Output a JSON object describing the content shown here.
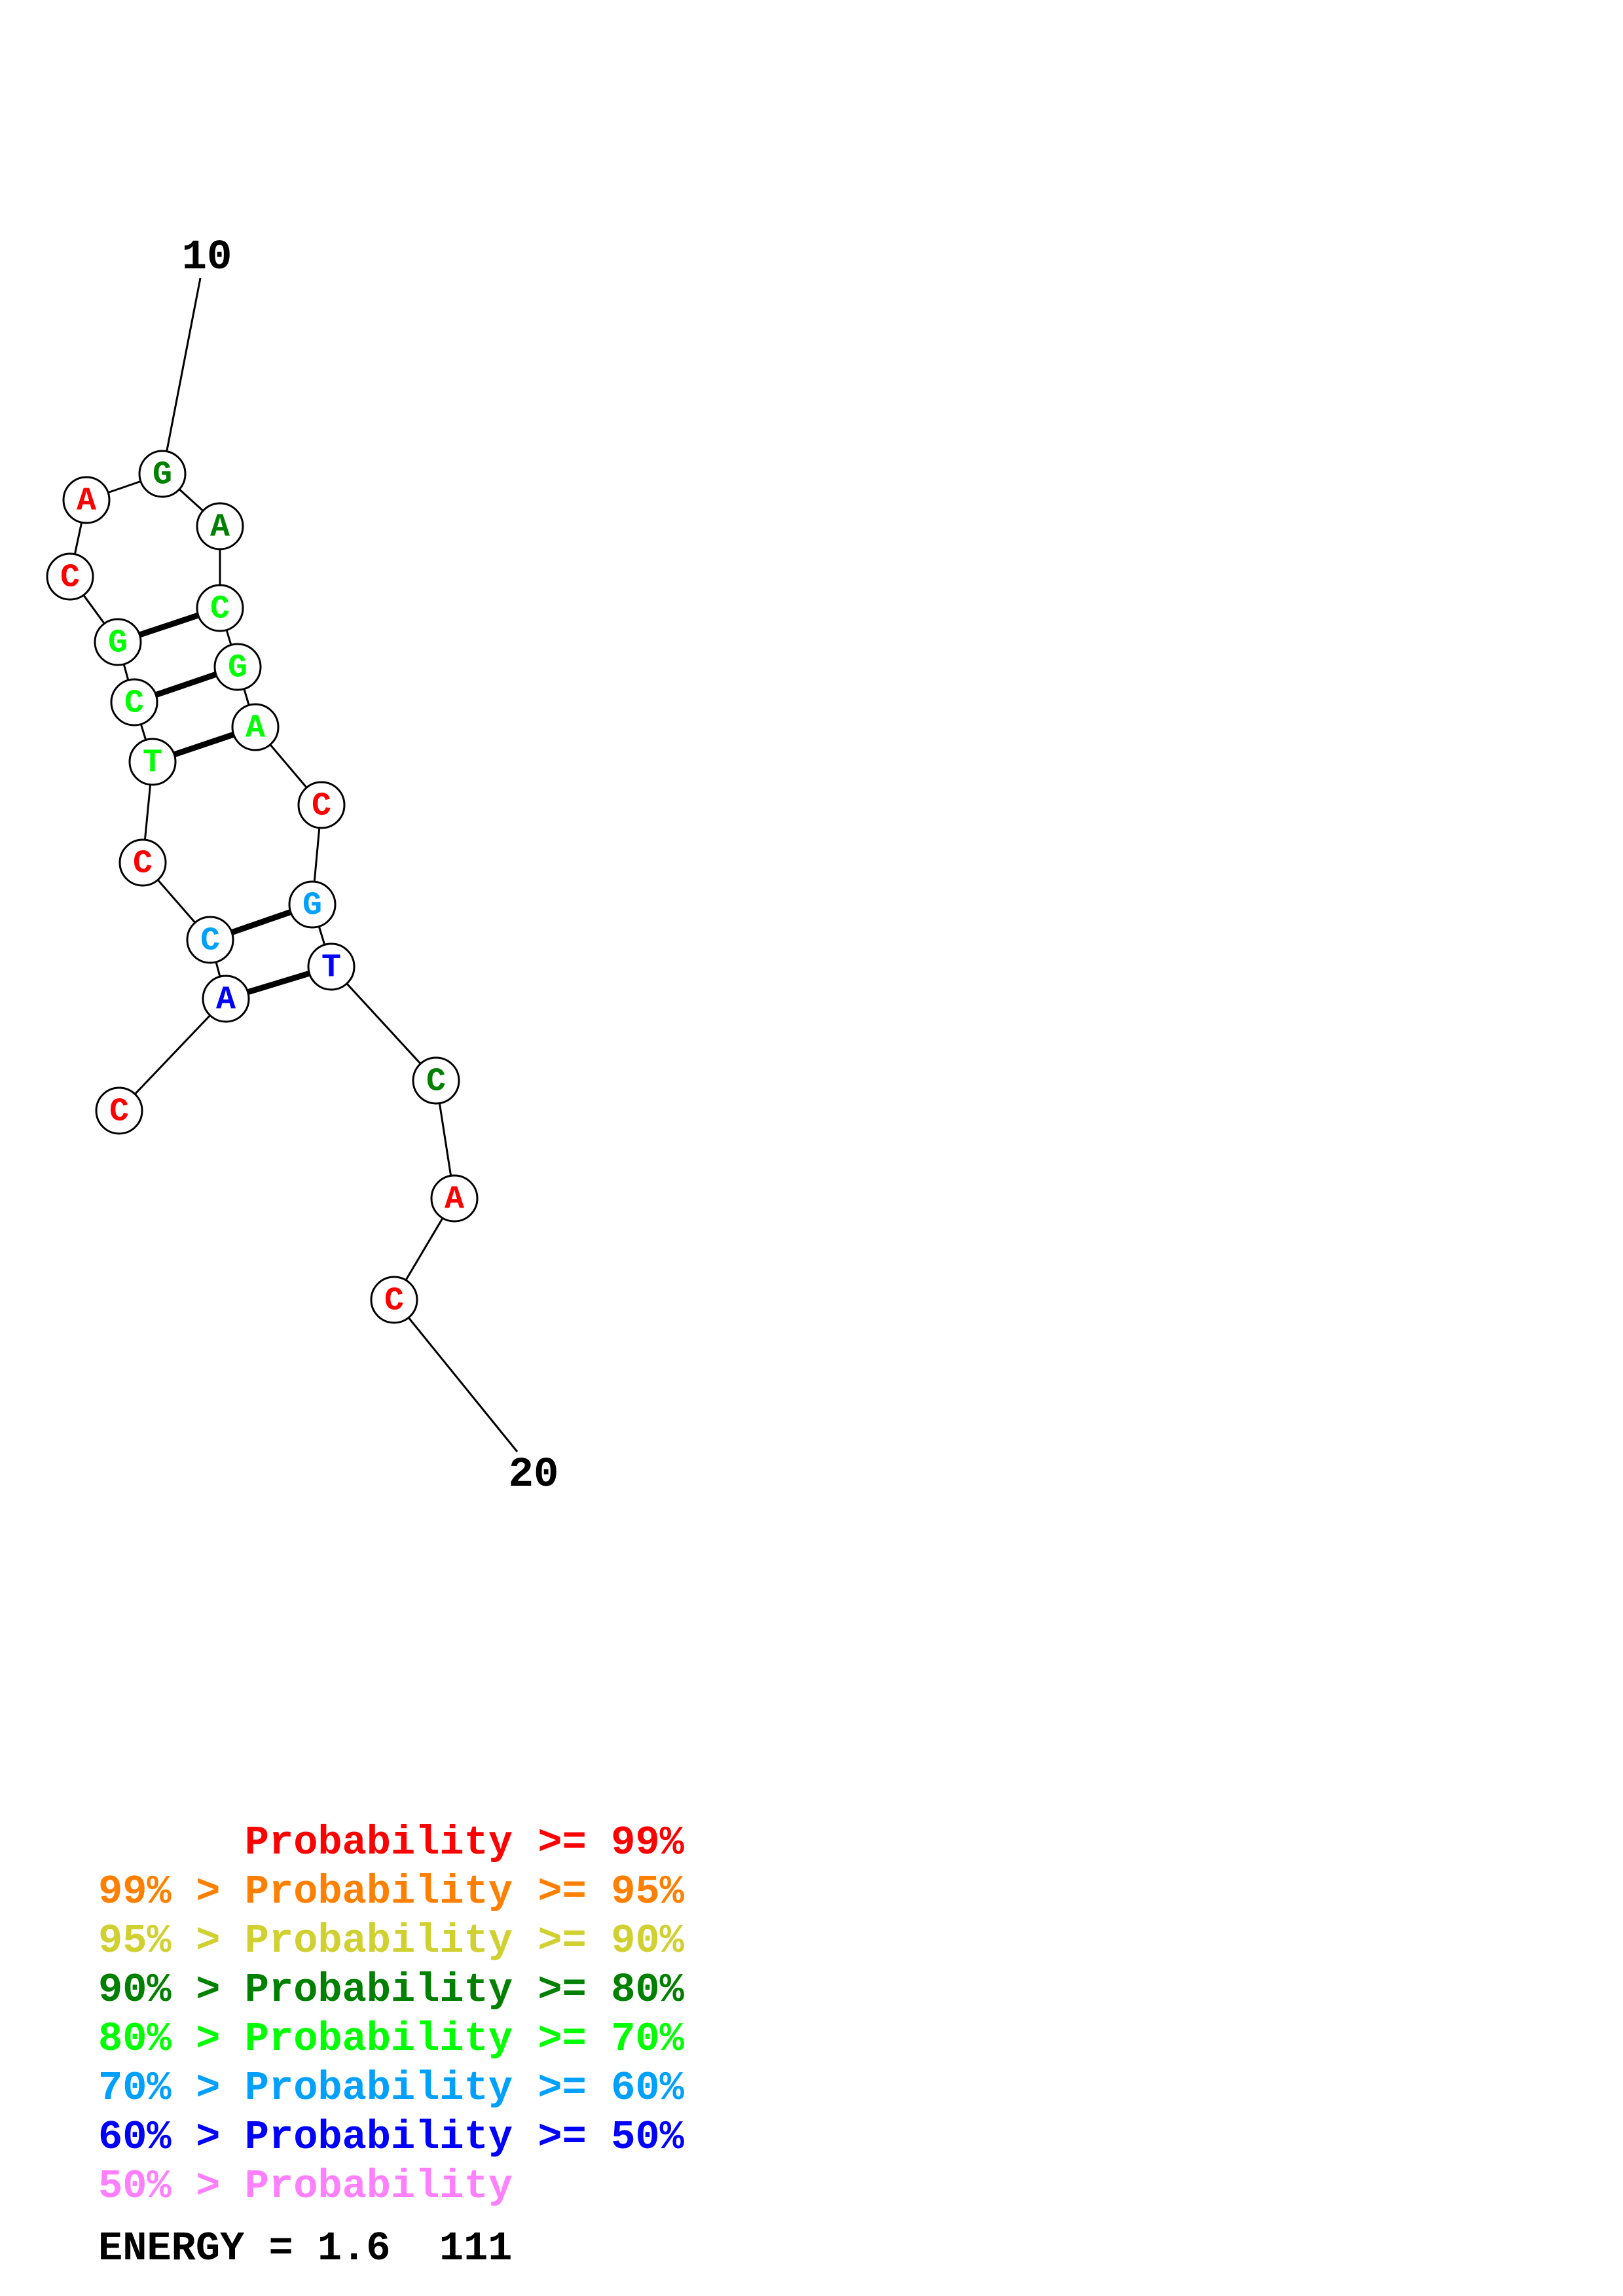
{
  "structure": {
    "nucleotides": [
      {
        "base": "C",
        "color": "#ff0000"
      },
      {
        "base": "A",
        "color": "#0000ff"
      },
      {
        "base": "C",
        "color": "#00a0ff"
      },
      {
        "base": "C",
        "color": "#ff0000"
      },
      {
        "base": "T",
        "color": "#00ff00"
      },
      {
        "base": "C",
        "color": "#00ff00"
      },
      {
        "base": "G",
        "color": "#00ff00"
      },
      {
        "base": "C",
        "color": "#ff0000"
      },
      {
        "base": "A",
        "color": "#ff0000"
      },
      {
        "base": "G",
        "color": "#008000"
      },
      {
        "base": "A",
        "color": "#008000"
      },
      {
        "base": "C",
        "color": "#00ff00"
      },
      {
        "base": "G",
        "color": "#00ff00"
      },
      {
        "base": "A",
        "color": "#00ff00"
      },
      {
        "base": "C",
        "color": "#ff0000"
      },
      {
        "base": "G",
        "color": "#00a0ff"
      },
      {
        "base": "T",
        "color": "#0000ff"
      },
      {
        "base": "C",
        "color": "#008000"
      },
      {
        "base": "A",
        "color": "#ff0000"
      },
      {
        "base": "C",
        "color": "#ff0000"
      }
    ],
    "base_pairs": [
      [
        2,
        17
      ],
      [
        3,
        16
      ],
      [
        5,
        14
      ],
      [
        6,
        13
      ],
      [
        7,
        12
      ]
    ],
    "position_labels": [
      {
        "text": "10",
        "index": 10
      },
      {
        "text": "20",
        "index": 20
      }
    ]
  },
  "legend": {
    "rows": [
      {
        "prefix": "",
        "sep": "",
        "label": "Probability",
        "op": ">=",
        "suffix": "99%",
        "color": "#ff0000"
      },
      {
        "prefix": "99%",
        "sep": ">",
        "label": "Probability",
        "op": ">=",
        "suffix": "95%",
        "color": "#ff8000"
      },
      {
        "prefix": "95%",
        "sep": ">",
        "label": "Probability",
        "op": ">=",
        "suffix": "90%",
        "color": "#d0d030"
      },
      {
        "prefix": "90%",
        "sep": ">",
        "label": "Probability",
        "op": ">=",
        "suffix": "80%",
        "color": "#008000"
      },
      {
        "prefix": "80%",
        "sep": ">",
        "label": "Probability",
        "op": ">=",
        "suffix": "70%",
        "color": "#00ff00"
      },
      {
        "prefix": "70%",
        "sep": ">",
        "label": "Probability",
        "op": ">=",
        "suffix": "60%",
        "color": "#00a0ff"
      },
      {
        "prefix": "60%",
        "sep": ">",
        "label": "Probability",
        "op": ">=",
        "suffix": "50%",
        "color": "#0000ff"
      },
      {
        "prefix": "50%",
        "sep": ">",
        "label": "Probability",
        "op": "",
        "suffix": "",
        "color": "#ff80ff"
      }
    ]
  },
  "energy": {
    "label": "ENERGY = 1.6  111"
  }
}
